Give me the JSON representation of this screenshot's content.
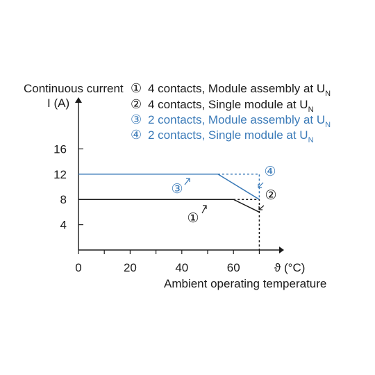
{
  "chart_data": {
    "type": "line",
    "ylabel_line1": "Continuous current",
    "ylabel_line2": "I (A)",
    "xlabel": "Ambient operating temperature",
    "x_unit_label": "ϑ (°C)",
    "x_ticks": [
      0,
      20,
      40,
      60
    ],
    "y_ticks": [
      4,
      8,
      12,
      16
    ],
    "xlim": [
      0,
      80
    ],
    "ylim": [
      0,
      20
    ],
    "colors": {
      "black": "#1a1a1a",
      "blue": "#3a7ab8"
    },
    "legend": [
      {
        "marker": "①",
        "text": "4 contacts, Module assembly at U",
        "sub": "N",
        "color": "#1a1a1a"
      },
      {
        "marker": "②",
        "text": "4 contacts, Single module at U",
        "sub": "N",
        "color": "#1a1a1a"
      },
      {
        "marker": "③",
        "text": "2 contacts, Module assembly at U",
        "sub": "N",
        "color": "#3a7ab8"
      },
      {
        "marker": "④",
        "text": "2 contacts, Single module at U",
        "sub": "N",
        "color": "#3a7ab8"
      }
    ],
    "series": [
      {
        "marker": "①",
        "color": "#1a1a1a",
        "dash": false,
        "x": [
          0,
          60,
          70
        ],
        "y": [
          8,
          8,
          6
        ]
      },
      {
        "marker": "②",
        "color": "#1a1a1a",
        "dash": true,
        "x": [
          60,
          70,
          70
        ],
        "y": [
          8,
          8,
          0
        ]
      },
      {
        "marker": "③",
        "color": "#3a7ab8",
        "dash": false,
        "x": [
          0,
          54,
          70
        ],
        "y": [
          12,
          12,
          8
        ]
      },
      {
        "marker": "④",
        "color": "#3a7ab8",
        "dash": true,
        "x": [
          54,
          70,
          70
        ],
        "y": [
          12,
          12,
          8
        ]
      }
    ],
    "curve_labels": [
      {
        "marker": "①",
        "color": "#1a1a1a"
      },
      {
        "marker": "②",
        "color": "#1a1a1a"
      },
      {
        "marker": "③",
        "color": "#3a7ab8"
      },
      {
        "marker": "④",
        "color": "#3a7ab8"
      }
    ]
  }
}
